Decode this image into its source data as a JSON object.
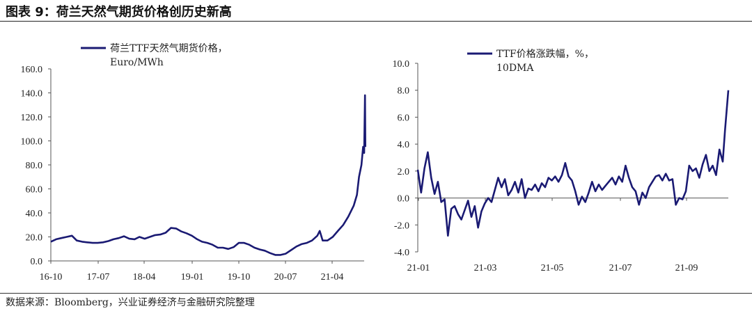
{
  "header": {
    "title": "图表 9：荷兰天然气期货价格创历史新高"
  },
  "footer": {
    "source": "数据来源：Bloomberg，兴业证券经济与金融研究院整理"
  },
  "colors": {
    "series": "#1a1a73",
    "axis": "#555555"
  },
  "chart_data": [
    {
      "type": "line",
      "legend": [
        "荷兰TTF天然气期货价格，",
        "Euro/MWh"
      ],
      "series": [
        {
          "name": "荷兰TTF天然气期货价格，Euro/MWh"
        }
      ],
      "x_ticks": [
        "16-10",
        "17-07",
        "18-04",
        "19-01",
        "19-10",
        "20-07",
        "21-04"
      ],
      "y_ticks": [
        "0.0",
        "20.0",
        "40.0",
        "60.0",
        "80.0",
        "100.0",
        "120.0",
        "140.0",
        "160.0"
      ],
      "ylim": [
        0,
        160
      ],
      "x_range": [
        "2016-10",
        "2021-10"
      ],
      "points": [
        [
          "2016-10-01",
          16
        ],
        [
          "2016-11-01",
          18
        ],
        [
          "2016-12-01",
          19
        ],
        [
          "2017-01-01",
          20
        ],
        [
          "2017-02-01",
          21
        ],
        [
          "2017-03-01",
          17
        ],
        [
          "2017-04-01",
          16
        ],
        [
          "2017-05-01",
          15.5
        ],
        [
          "2017-06-01",
          15
        ],
        [
          "2017-07-01",
          15
        ],
        [
          "2017-08-01",
          15.5
        ],
        [
          "2017-09-01",
          16.5
        ],
        [
          "2017-10-01",
          18
        ],
        [
          "2017-11-01",
          19
        ],
        [
          "2017-12-01",
          20.5
        ],
        [
          "2018-01-01",
          18.5
        ],
        [
          "2018-02-01",
          18
        ],
        [
          "2018-03-01",
          20
        ],
        [
          "2018-04-01",
          18.5
        ],
        [
          "2018-05-01",
          20
        ],
        [
          "2018-06-01",
          21.5
        ],
        [
          "2018-07-01",
          22
        ],
        [
          "2018-08-01",
          23.5
        ],
        [
          "2018-09-01",
          27.5
        ],
        [
          "2018-10-01",
          27
        ],
        [
          "2018-11-01",
          24.5
        ],
        [
          "2018-12-01",
          23
        ],
        [
          "2019-01-01",
          21
        ],
        [
          "2019-02-01",
          18
        ],
        [
          "2019-03-01",
          16
        ],
        [
          "2019-04-01",
          15
        ],
        [
          "2019-05-01",
          13.5
        ],
        [
          "2019-06-01",
          11
        ],
        [
          "2019-07-01",
          11
        ],
        [
          "2019-08-01",
          10
        ],
        [
          "2019-09-01",
          11.5
        ],
        [
          "2019-10-01",
          15
        ],
        [
          "2019-11-01",
          15
        ],
        [
          "2019-12-01",
          13.5
        ],
        [
          "2020-01-01",
          11
        ],
        [
          "2020-02-01",
          9.5
        ],
        [
          "2020-03-01",
          8.5
        ],
        [
          "2020-04-01",
          6.5
        ],
        [
          "2020-05-01",
          5
        ],
        [
          "2020-06-01",
          5
        ],
        [
          "2020-07-01",
          6
        ],
        [
          "2020-08-01",
          9
        ],
        [
          "2020-09-01",
          12
        ],
        [
          "2020-10-01",
          14
        ],
        [
          "2020-11-01",
          15
        ],
        [
          "2020-12-01",
          17
        ],
        [
          "2021-01-01",
          21
        ],
        [
          "2021-01-15",
          25
        ],
        [
          "2021-02-01",
          17
        ],
        [
          "2021-03-01",
          17
        ],
        [
          "2021-04-01",
          20
        ],
        [
          "2021-05-01",
          25
        ],
        [
          "2021-06-01",
          30
        ],
        [
          "2021-07-01",
          37
        ],
        [
          "2021-08-01",
          46
        ],
        [
          "2021-08-20",
          55
        ],
        [
          "2021-09-01",
          70
        ],
        [
          "2021-09-15",
          80
        ],
        [
          "2021-09-25",
          95
        ],
        [
          "2021-10-01",
          90
        ],
        [
          "2021-10-06",
          138
        ],
        [
          "2021-10-08",
          95
        ]
      ]
    },
    {
      "type": "line",
      "legend": [
        "TTF价格涨跌幅，%，",
        "10DMA"
      ],
      "series": [
        {
          "name": "TTF价格涨跌幅，%，10DMA"
        }
      ],
      "x_ticks": [
        "21-01",
        "21-03",
        "21-05",
        "21-07",
        "21-09"
      ],
      "y_ticks": [
        "-4.0",
        "-2.0",
        "0.0",
        "2.0",
        "4.0",
        "6.0",
        "8.0",
        "10.0"
      ],
      "ylim": [
        -4,
        10
      ],
      "x_range": [
        "2021-01-01",
        "2021-10-06"
      ],
      "points": [
        [
          "2021-01-01",
          2.1
        ],
        [
          "2021-01-04",
          0.4
        ],
        [
          "2021-01-07",
          2.2
        ],
        [
          "2021-01-10",
          3.4
        ],
        [
          "2021-01-13",
          1.5
        ],
        [
          "2021-01-16",
          0.3
        ],
        [
          "2021-01-19",
          1.2
        ],
        [
          "2021-01-22",
          -0.3
        ],
        [
          "2021-01-25",
          -0.1
        ],
        [
          "2021-01-28",
          -2.8
        ],
        [
          "2021-01-31",
          -0.8
        ],
        [
          "2021-02-03",
          -0.6
        ],
        [
          "2021-02-06",
          -1.2
        ],
        [
          "2021-02-09",
          -1.6
        ],
        [
          "2021-02-12",
          -0.9
        ],
        [
          "2021-02-15",
          -0.2
        ],
        [
          "2021-02-18",
          -1.4
        ],
        [
          "2021-02-21",
          -0.6
        ],
        [
          "2021-02-24",
          -2.2
        ],
        [
          "2021-02-27",
          -1.0
        ],
        [
          "2021-03-02",
          -0.4
        ],
        [
          "2021-03-05",
          0.0
        ],
        [
          "2021-03-08",
          -0.3
        ],
        [
          "2021-03-11",
          0.6
        ],
        [
          "2021-03-14",
          1.5
        ],
        [
          "2021-03-17",
          0.8
        ],
        [
          "2021-03-20",
          1.4
        ],
        [
          "2021-03-23",
          0.2
        ],
        [
          "2021-03-26",
          0.6
        ],
        [
          "2021-03-29",
          1.2
        ],
        [
          "2021-04-01",
          0.4
        ],
        [
          "2021-04-04",
          1.4
        ],
        [
          "2021-04-07",
          0.0
        ],
        [
          "2021-04-10",
          0.7
        ],
        [
          "2021-04-13",
          0.6
        ],
        [
          "2021-04-16",
          1.0
        ],
        [
          "2021-04-19",
          0.5
        ],
        [
          "2021-04-22",
          1.1
        ],
        [
          "2021-04-25",
          0.8
        ],
        [
          "2021-04-28",
          1.5
        ],
        [
          "2021-05-01",
          1.3
        ],
        [
          "2021-05-04",
          1.6
        ],
        [
          "2021-05-07",
          1.2
        ],
        [
          "2021-05-10",
          1.7
        ],
        [
          "2021-05-13",
          2.6
        ],
        [
          "2021-05-16",
          1.6
        ],
        [
          "2021-05-19",
          1.3
        ],
        [
          "2021-05-22",
          0.5
        ],
        [
          "2021-05-25",
          -0.5
        ],
        [
          "2021-05-28",
          0.1
        ],
        [
          "2021-05-31",
          -0.3
        ],
        [
          "2021-06-03",
          0.4
        ],
        [
          "2021-06-06",
          1.2
        ],
        [
          "2021-06-09",
          0.5
        ],
        [
          "2021-06-12",
          1.0
        ],
        [
          "2021-06-15",
          0.6
        ],
        [
          "2021-06-18",
          0.9
        ],
        [
          "2021-06-21",
          1.2
        ],
        [
          "2021-06-24",
          1.5
        ],
        [
          "2021-06-27",
          1.0
        ],
        [
          "2021-06-30",
          1.6
        ],
        [
          "2021-07-03",
          1.2
        ],
        [
          "2021-07-06",
          2.4
        ],
        [
          "2021-07-09",
          1.5
        ],
        [
          "2021-07-12",
          0.8
        ],
        [
          "2021-07-15",
          0.5
        ],
        [
          "2021-07-18",
          -0.5
        ],
        [
          "2021-07-21",
          0.4
        ],
        [
          "2021-07-24",
          0.0
        ],
        [
          "2021-07-27",
          0.8
        ],
        [
          "2021-07-30",
          1.2
        ],
        [
          "2021-08-02",
          1.6
        ],
        [
          "2021-08-05",
          1.7
        ],
        [
          "2021-08-08",
          1.3
        ],
        [
          "2021-08-11",
          1.8
        ],
        [
          "2021-08-14",
          1.3
        ],
        [
          "2021-08-17",
          1.4
        ],
        [
          "2021-08-20",
          -0.5
        ],
        [
          "2021-08-23",
          0.0
        ],
        [
          "2021-08-26",
          -0.1
        ],
        [
          "2021-08-29",
          0.5
        ],
        [
          "2021-09-01",
          2.4
        ],
        [
          "2021-09-04",
          2.0
        ],
        [
          "2021-09-07",
          2.2
        ],
        [
          "2021-09-10",
          1.5
        ],
        [
          "2021-09-13",
          2.5
        ],
        [
          "2021-09-16",
          3.2
        ],
        [
          "2021-09-19",
          2.0
        ],
        [
          "2021-09-22",
          2.4
        ],
        [
          "2021-09-25",
          1.7
        ],
        [
          "2021-09-28",
          3.6
        ],
        [
          "2021-10-01",
          2.7
        ],
        [
          "2021-10-03",
          5.0
        ],
        [
          "2021-10-06",
          8.0
        ]
      ]
    }
  ]
}
